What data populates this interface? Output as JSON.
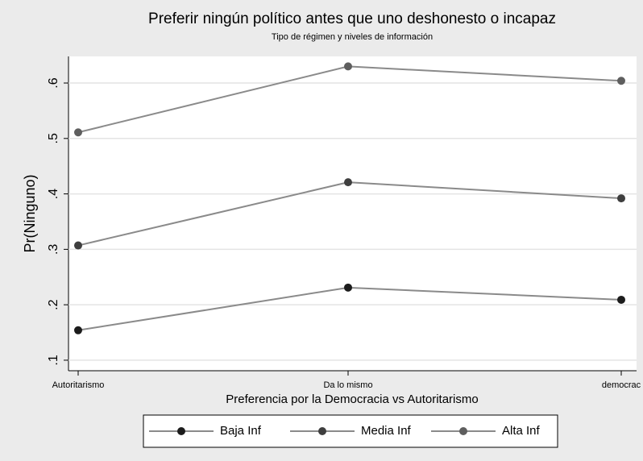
{
  "chart_data": {
    "type": "line",
    "title": "Preferir ningún político antes que uno deshonesto o incapaz",
    "subtitle": "Tipo de régimen y niveles de información",
    "x_label": "Preferencia por la Democracia vs Autoritarismo",
    "y_label": "Pr(Ninguno)",
    "categories": [
      "Autoritarismo",
      "Da lo mismo",
      "democrac"
    ],
    "series": [
      {
        "name": "Baja Inf",
        "color": "#1c1c1c",
        "values": [
          0.154,
          0.231,
          0.209
        ]
      },
      {
        "name": "Media Inf",
        "color": "#3e3e3e",
        "values": [
          0.307,
          0.421,
          0.392
        ]
      },
      {
        "name": "Alta Inf",
        "color": "#5e5e5e",
        "values": [
          0.511,
          0.63,
          0.604
        ]
      }
    ],
    "ylim": [
      0.081,
      0.648
    ],
    "yticks": [
      {
        "value": 0.1,
        "label": ".1"
      },
      {
        "value": 0.2,
        "label": ".2"
      },
      {
        "value": 0.3,
        "label": ".3"
      },
      {
        "value": 0.4,
        "label": ".4"
      },
      {
        "value": 0.5,
        "label": ".5"
      },
      {
        "value": 0.6,
        "label": ".6"
      }
    ],
    "grid": true,
    "legend": "bottom"
  }
}
